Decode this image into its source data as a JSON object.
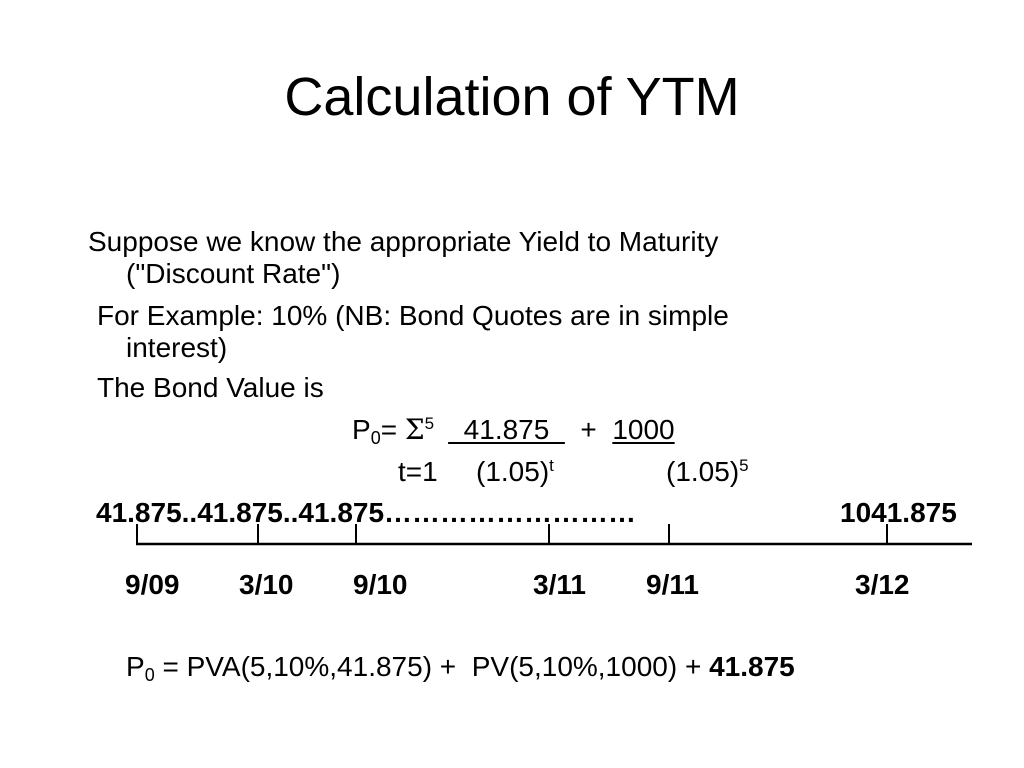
{
  "slide": {
    "title": "Calculation of YTM",
    "line1a": "Suppose we know the appropriate Yield to Maturity",
    "line1b": "(\"Discount Rate\")",
    "line2a": "For Example:  10% (NB:  Bond Quotes are in simple",
    "line2b": "interest)",
    "line3": "The Bond Value is"
  },
  "formula": {
    "p": "P",
    "p_sub": "0",
    "eq": "= ",
    "sigma": "Σ",
    "sigma_sup": "5",
    "numerator1": "  41.875  ",
    "plus": "  +  ",
    "numerator2": "1000",
    "index": "t=1",
    "den1": "(1.05)",
    "den1_sup": "t",
    "den2": "(1.05)",
    "den2_sup": "5"
  },
  "timeline": {
    "cashflows": "41.875..41.875..41.875………………………",
    "final_cashflow": "1041.875",
    "dates": [
      "9/09",
      "3/10",
      "9/10",
      "3/11",
      "9/11",
      "3/12"
    ]
  },
  "bottom": {
    "p": "P",
    "p_sub": "0",
    "expr": " = PVA(5,10%,41.875) +  PV(5,10%,1000) + ",
    "last": "41.875"
  }
}
